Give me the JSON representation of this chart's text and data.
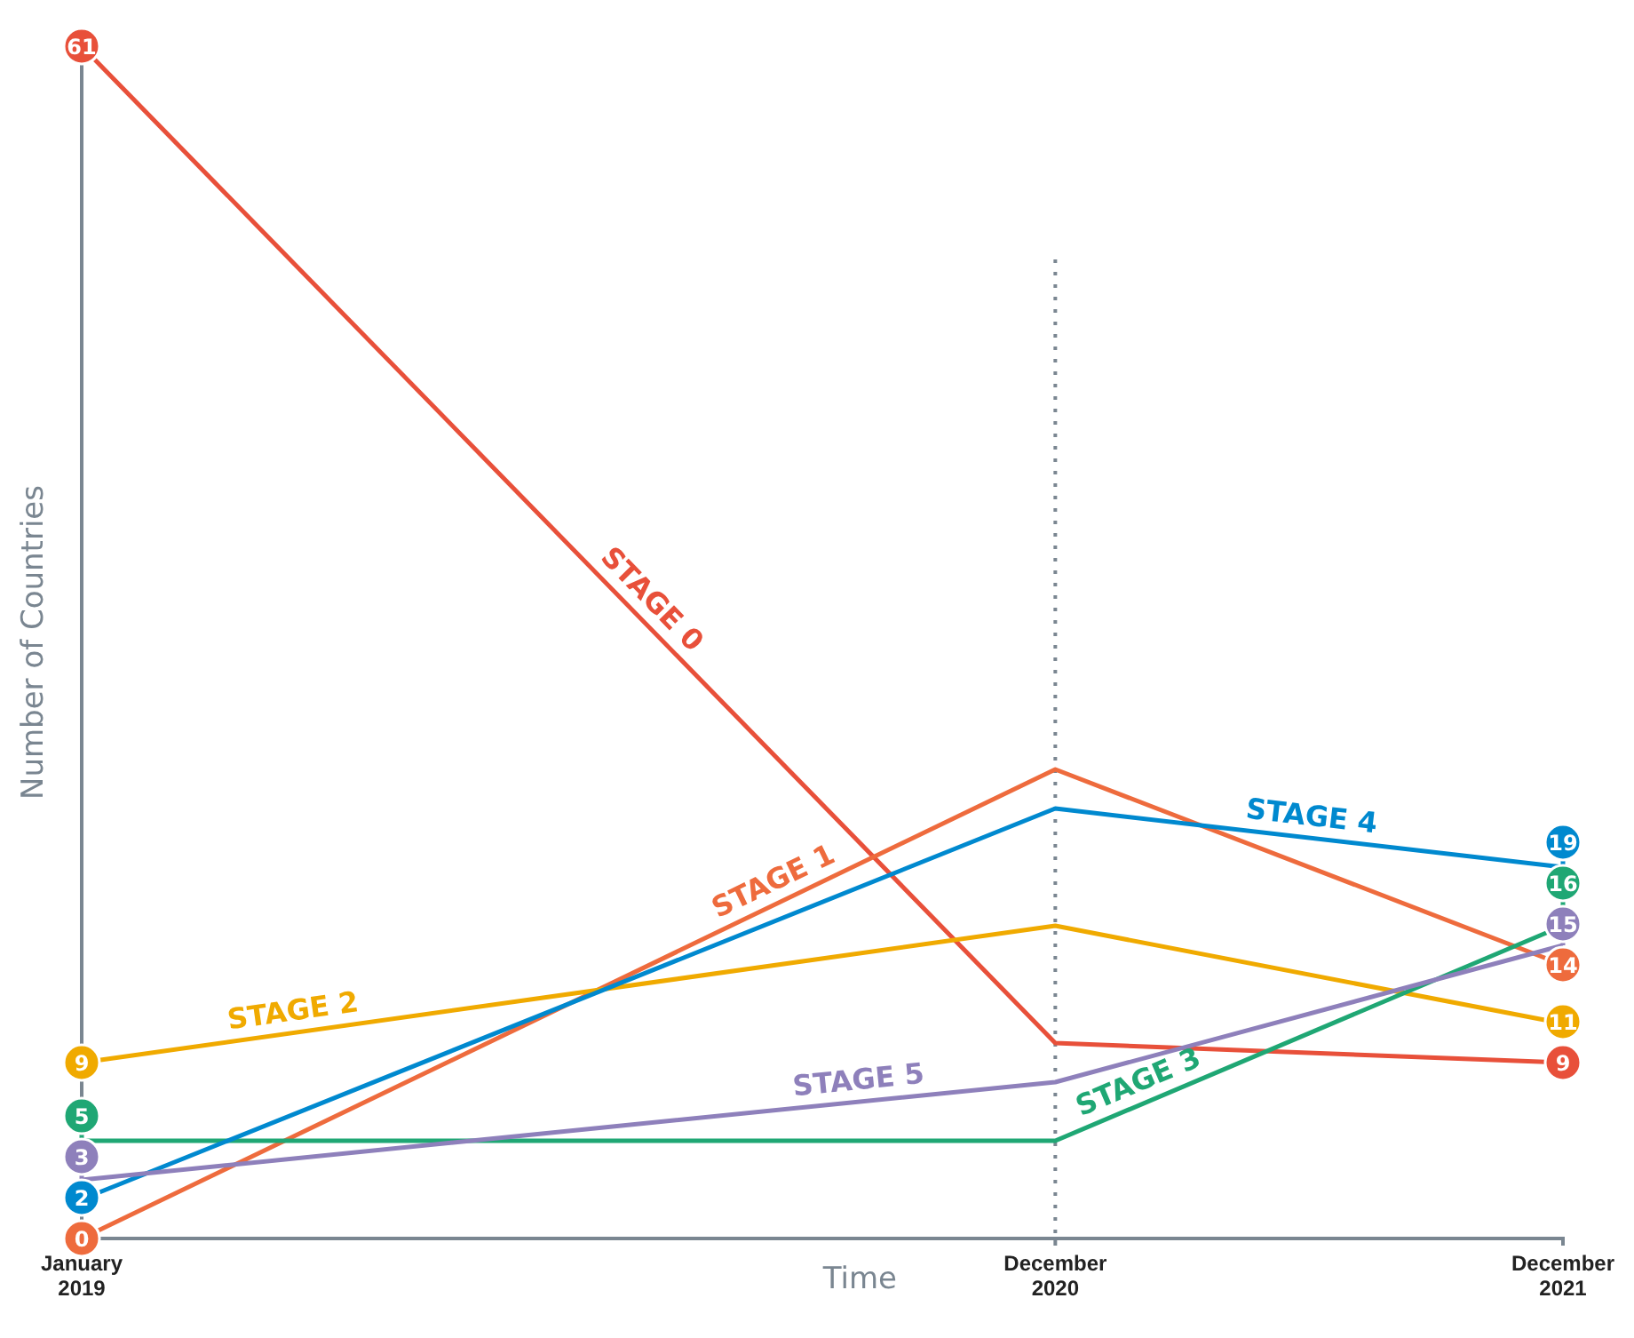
{
  "chart_data": {
    "type": "line",
    "xlabel": "Time",
    "ylabel": "Number of Countries",
    "x": [
      "2019-01",
      "2020-12",
      "2021-12"
    ],
    "xlim": [
      "2019-01",
      "2021-12"
    ],
    "xticks": [
      {
        "value": "2019-01",
        "label": "January\n2019"
      },
      {
        "value": "2020-12",
        "label": "December\n2020"
      },
      {
        "value": "2021-12",
        "label": "December\n2021"
      }
    ],
    "ylim": [
      0,
      61
    ],
    "tick_labels": "x",
    "grid": false,
    "legend": false,
    "ref_lines": [
      {
        "axis": "x",
        "value": "2020-12",
        "line_style": "dotted",
        "color": "#7a8691"
      }
    ],
    "series": [
      {
        "name": "STAGE 0",
        "color": "#e8503a",
        "values": [
          61,
          10,
          9
        ],
        "value_labels": [
          "61",
          null,
          "9"
        ]
      },
      {
        "name": "STAGE 1",
        "color": "#ee6b3d",
        "values": [
          0,
          24,
          14
        ],
        "value_labels": [
          "0",
          null,
          "14"
        ]
      },
      {
        "name": "STAGE 2",
        "color": "#f0aa00",
        "values": [
          9,
          16,
          11
        ],
        "value_labels": [
          "9",
          null,
          "11"
        ]
      },
      {
        "name": "STAGE 3",
        "color": "#1fa774",
        "values": [
          5,
          5,
          16
        ],
        "value_labels": [
          "5",
          null,
          "16"
        ]
      },
      {
        "name": "STAGE 4",
        "color": "#0089cf",
        "values": [
          2,
          22,
          19
        ],
        "value_labels": [
          "2",
          null,
          "19"
        ]
      },
      {
        "name": "STAGE 5",
        "color": "#8e80bb",
        "values": [
          3,
          8,
          15
        ],
        "value_labels": [
          "3",
          null,
          "15"
        ]
      }
    ]
  }
}
